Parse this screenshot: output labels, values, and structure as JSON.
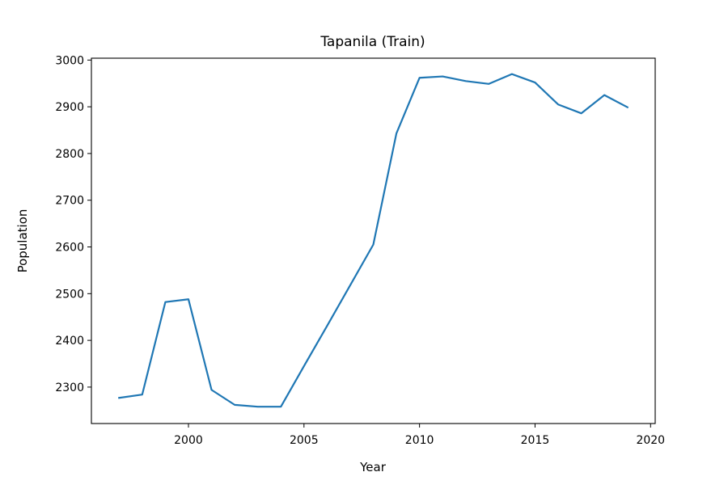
{
  "chart_data": {
    "type": "line",
    "title": "Tapanila (Train)",
    "xlabel": "Year",
    "ylabel": "Population",
    "xlim": [
      1995.8,
      2020.2
    ],
    "ylim": [
      2222,
      3004
    ],
    "x_ticks": [
      2000,
      2005,
      2010,
      2015,
      2020
    ],
    "y_ticks": [
      2300,
      2400,
      2500,
      2600,
      2700,
      2800,
      2900,
      3000
    ],
    "grid": false,
    "legend": "none",
    "series": [
      {
        "color": "#1f77b4",
        "x": [
          1997,
          1998,
          1999,
          2000,
          2001,
          2002,
          2003,
          2004,
          2005,
          2006,
          2007,
          2008,
          2009,
          2010,
          2011,
          2012,
          2013,
          2014,
          2015,
          2016,
          2017,
          2018,
          2019
        ],
        "y": [
          2277,
          2284,
          2482,
          2488,
          2294,
          2262,
          2258,
          2258,
          2345,
          2431,
          2518,
          2605,
          2843,
          2962,
          2965,
          2955,
          2949,
          2970,
          2952,
          2905,
          2886,
          2925,
          2899
        ]
      }
    ]
  }
}
